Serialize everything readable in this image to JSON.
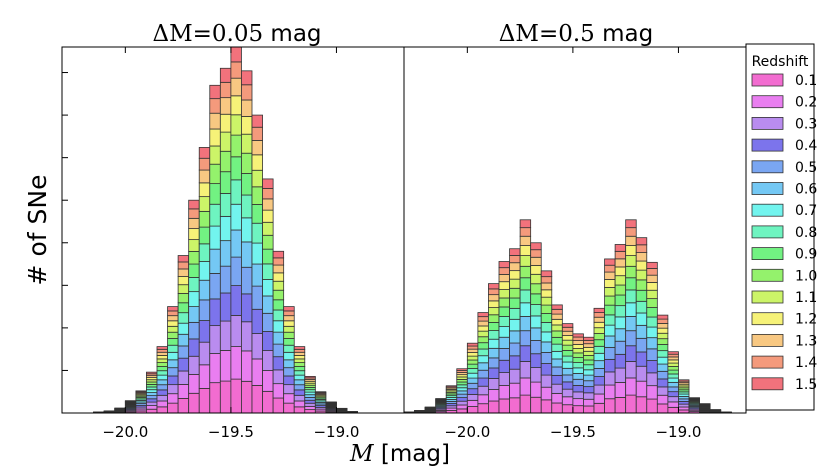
{
  "ylabel": "# of SNe",
  "xlabel_var": "M",
  "xlabel_unit": "[mag]",
  "legend": {
    "title": "Redshift",
    "placement": "right"
  },
  "redshift_colors": [
    "#f26cd0",
    "#e97ef0",
    "#b98cef",
    "#7c74ec",
    "#7aa6f2",
    "#74c8f4",
    "#72f4ee",
    "#6ef4c0",
    "#72f282",
    "#94f26c",
    "#ccf468",
    "#f6f278",
    "#f8c882",
    "#f49a7c",
    "#f2727c"
  ],
  "chart_data": [
    {
      "type": "bar",
      "stacked": true,
      "title_prefix": "ΔM",
      "title_value": "=0.05",
      "title_unit": " mag",
      "xlim": [
        -20.3,
        -18.68
      ],
      "ylim": [
        0,
        4300
      ],
      "bin_width": 0.05,
      "xticks": [
        -20.0,
        -19.5,
        -19.0
      ],
      "xtick_labels": [
        "−20.0",
        "−19.5",
        "−19.0"
      ],
      "yticks": [
        500,
        1000,
        1500,
        2000,
        2500,
        3000,
        3500,
        4000
      ],
      "bin_centers": [
        -20.125,
        -20.075,
        -20.025,
        -19.975,
        -19.925,
        -19.875,
        -19.825,
        -19.775,
        -19.725,
        -19.675,
        -19.625,
        -19.575,
        -19.525,
        -19.475,
        -19.425,
        -19.375,
        -19.325,
        -19.275,
        -19.225,
        -19.175,
        -19.125,
        -19.075,
        -19.025,
        -18.975,
        -18.925
      ],
      "redshift_bins": [
        "0.1",
        "0.2",
        "0.3",
        "0.4",
        "0.5",
        "0.6",
        "0.7",
        "0.8",
        "0.9",
        "1.0",
        "1.1",
        "1.2",
        "1.3",
        "1.4",
        "1.5"
      ],
      "totals": [
        12,
        25,
        58,
        145,
        260,
        480,
        780,
        1250,
        1850,
        2500,
        3120,
        3850,
        4050,
        4300,
        4020,
        3500,
        2750,
        1900,
        1250,
        780,
        430,
        250,
        130,
        55,
        18
      ]
    },
    {
      "type": "bar",
      "stacked": true,
      "title_prefix": "ΔM",
      "title_value": "=0.5",
      "title_unit": " mag",
      "xlim": [
        -20.3,
        -18.68
      ],
      "ylim": [
        0,
        4300
      ],
      "bin_width": 0.05,
      "xticks": [
        -20.0,
        -19.5,
        -19.0
      ],
      "xtick_labels": [
        "−20.0",
        "−19.5",
        "−19.0"
      ],
      "bin_centers": [
        -20.275,
        -20.225,
        -20.175,
        -20.125,
        -20.075,
        -20.025,
        -19.975,
        -19.925,
        -19.875,
        -19.825,
        -19.775,
        -19.725,
        -19.675,
        -19.625,
        -19.575,
        -19.525,
        -19.475,
        -19.425,
        -19.375,
        -19.325,
        -19.275,
        -19.225,
        -19.175,
        -19.125,
        -19.075,
        -19.025,
        -18.975,
        -18.925,
        -18.875,
        -18.825,
        -18.775
      ],
      "redshift_bins": [
        "0.1",
        "0.2",
        "0.3",
        "0.4",
        "0.5",
        "0.6",
        "0.7",
        "0.8",
        "0.9",
        "1.0",
        "1.1",
        "1.2",
        "1.3",
        "1.4",
        "1.5"
      ],
      "totals": [
        12,
        30,
        70,
        170,
        320,
        520,
        820,
        1180,
        1520,
        1780,
        1930,
        2270,
        2000,
        1670,
        1270,
        1050,
        930,
        890,
        1230,
        1810,
        1980,
        2270,
        2060,
        1770,
        1150,
        720,
        390,
        180,
        110,
        40,
        12
      ]
    }
  ]
}
